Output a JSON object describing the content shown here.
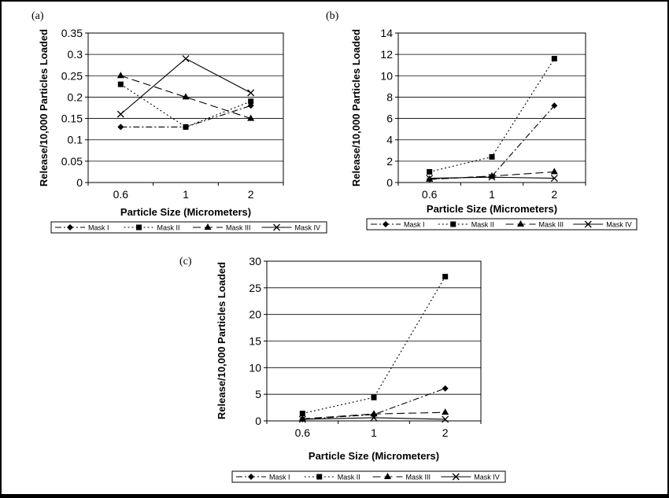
{
  "chart_data": [
    {
      "type": "line",
      "panel_label": "(a)",
      "categories": [
        "0.6",
        "1",
        "2"
      ],
      "xlabel": "Particle Size (Micrometers)",
      "ylabel": "Release/10,000 Particles Loaded",
      "ylim": [
        0,
        0.35
      ],
      "yticks": [
        "0",
        "0.05",
        "0.1",
        "0.15",
        "0.2",
        "0.25",
        "0.3",
        "0.35"
      ],
      "grid": true,
      "legend_position": "bottom",
      "series": [
        {
          "name": "Mask I",
          "values": [
            0.13,
            0.13,
            0.18
          ]
        },
        {
          "name": "Mask II",
          "values": [
            0.23,
            0.13,
            0.19
          ]
        },
        {
          "name": "Mask III",
          "values": [
            0.25,
            0.2,
            0.15
          ]
        },
        {
          "name": "Mask IV",
          "values": [
            0.16,
            0.29,
            0.21
          ]
        }
      ]
    },
    {
      "type": "line",
      "panel_label": "(b)",
      "categories": [
        "0.6",
        "1",
        "2"
      ],
      "xlabel": "Particle Size (Micrometers)",
      "ylabel": "Release/10,000 Particles Loaded",
      "ylim": [
        0,
        14
      ],
      "yticks": [
        "0",
        "2",
        "4",
        "6",
        "8",
        "10",
        "12",
        "14"
      ],
      "grid": true,
      "legend_position": "bottom",
      "series": [
        {
          "name": "Mask I",
          "values": [
            0.3,
            0.6,
            7.2
          ]
        },
        {
          "name": "Mask II",
          "values": [
            1.0,
            2.4,
            11.6
          ]
        },
        {
          "name": "Mask III",
          "values": [
            0.3,
            0.6,
            1.0
          ]
        },
        {
          "name": "Mask IV",
          "values": [
            0.4,
            0.5,
            0.4
          ]
        }
      ]
    },
    {
      "type": "line",
      "panel_label": "(c)",
      "categories": [
        "0.6",
        "1",
        "2"
      ],
      "xlabel": "Particle Size (Micrometers)",
      "ylabel": "Release/10,000 Particles Loaded",
      "ylim": [
        0,
        30
      ],
      "yticks": [
        "0",
        "5",
        "10",
        "15",
        "20",
        "25",
        "30"
      ],
      "grid": true,
      "legend_position": "bottom",
      "series": [
        {
          "name": "Mask I",
          "values": [
            0.3,
            1.2,
            6.1
          ]
        },
        {
          "name": "Mask II",
          "values": [
            1.4,
            4.4,
            27.1
          ]
        },
        {
          "name": "Mask III",
          "values": [
            0.4,
            1.3,
            1.6
          ]
        },
        {
          "name": "Mask IV",
          "values": [
            0.3,
            0.6,
            0.3
          ]
        }
      ]
    }
  ]
}
